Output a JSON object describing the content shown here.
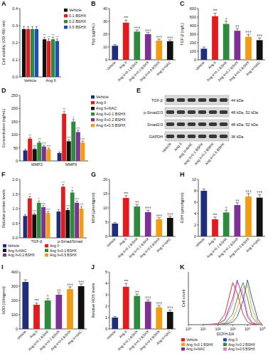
{
  "chart_data": [
    {
      "label": "A",
      "type": "bar",
      "y_label": "Cell viability (OD 450 nm)",
      "categories": [
        "Vehicle",
        "Ang II"
      ],
      "legend": "right",
      "ylim": [
        0,
        0.4
      ],
      "yticks": [
        {
          "value": 0,
          "label": "0.0"
        },
        {
          "value": 0.1,
          "label": "0.1"
        },
        {
          "value": 0.2,
          "label": "0.2"
        },
        {
          "value": 0.3,
          "label": "0.3"
        },
        {
          "value": 0.4,
          "label": "0.4"
        }
      ],
      "series": [
        {
          "name": "Vehicle",
          "color": "#111111",
          "values": [
            0.28,
            0.22
          ],
          "errors": [
            0.015,
            0.012
          ],
          "sig": [
            null,
            "***"
          ]
        },
        {
          "name": "0.1 BSHX",
          "color": "#e41a1c",
          "values": [
            0.28,
            0.21
          ],
          "errors": [
            0.014,
            0.012
          ],
          "sig": [
            null,
            "***"
          ]
        },
        {
          "name": "0.2 BSHX",
          "color": "#2e8b3e",
          "values": [
            0.28,
            0.22
          ],
          "errors": [
            0.015,
            0.013
          ],
          "sig": [
            null,
            "***"
          ]
        },
        {
          "name": "0.5 BSHX",
          "color": "#1f4fb4",
          "values": [
            0.28,
            0.21
          ],
          "errors": [
            0.014,
            0.012
          ],
          "sig": [
            null,
            "***"
          ]
        }
      ]
    },
    {
      "label": "B",
      "type": "bar",
      "y_label": "Hyp (μg/mL)",
      "categories": [
        "Vehicle",
        "Ang II",
        "Ang II+0.1 BSHX",
        "Ang II+0.2 BSHX",
        "Ang II+0.5 BSHX",
        "Ang II+NAC"
      ],
      "colors": [
        "#1f2d7a",
        "#e41a1c",
        "#2e8b3e",
        "#7b3294",
        "#f39c12",
        "#111111"
      ],
      "ylim": [
        0,
        40
      ],
      "yticks": [
        0,
        10,
        20,
        30,
        40
      ],
      "series": [
        {
          "values": [
            11,
            29,
            22,
            20,
            15,
            14.5
          ],
          "errors": [
            1,
            2,
            1.2,
            1.2,
            1,
            1
          ],
          "sig": [
            null,
            "***",
            "†††",
            "†††",
            "†††",
            "†††"
          ]
        }
      ]
    },
    {
      "label": "C",
      "type": "bar",
      "y_label": "TGF-β (ng/L)",
      "categories": [
        "Vehicle",
        "Ang II",
        "Ang II+0.1 BSHX",
        "Ang II+0.2 BSHX",
        "Ang II+0.5 BSHX",
        "Ang II+NAC"
      ],
      "colors": [
        "#1f2d7a",
        "#e41a1c",
        "#2e8b3e",
        "#7b3294",
        "#f39c12",
        "#111111"
      ],
      "ylim": [
        0,
        600
      ],
      "yticks": [
        0,
        100,
        200,
        300,
        400,
        500,
        600
      ],
      "series": [
        {
          "values": [
            130,
            510,
            420,
            340,
            270,
            230
          ],
          "errors": [
            20,
            35,
            30,
            25,
            25,
            25
          ],
          "sig": [
            null,
            "***",
            "†",
            "††",
            "†††",
            "†††"
          ]
        }
      ]
    },
    {
      "label": "D",
      "type": "bar",
      "y_label": "Concentration (ng/mL)",
      "categories": [
        "MMP2",
        "MMP9"
      ],
      "legend": "right",
      "ylim": [
        0,
        250
      ],
      "yticks": [
        0,
        50,
        100,
        150,
        200,
        250
      ],
      "series": [
        {
          "name": "Vehicle",
          "color": "#1f2d7a",
          "values": [
            40,
            30
          ],
          "errors": [
            4,
            4
          ],
          "sig": [
            null,
            null
          ]
        },
        {
          "name": "Ang II",
          "color": "#e41a1c",
          "values": [
            85,
            180
          ],
          "errors": [
            5,
            10
          ],
          "sig": [
            "***",
            "***"
          ]
        },
        {
          "name": "Ang II+NAC",
          "color": "#111111",
          "values": [
            45,
            75
          ],
          "errors": [
            4,
            6
          ],
          "sig": [
            "†††",
            "†††"
          ]
        },
        {
          "name": "Ang II+0.1 BSHX",
          "color": "#2e8b3e",
          "values": [
            70,
            150
          ],
          "errors": [
            5,
            8
          ],
          "sig": [
            "††",
            "†"
          ]
        },
        {
          "name": "Ang II+0.2 BSHX",
          "color": "#7b3294",
          "values": [
            55,
            110
          ],
          "errors": [
            4,
            7
          ],
          "sig": [
            "†††",
            "†††"
          ]
        },
        {
          "name": "Ang II+0.5 BSHX",
          "color": "#f39c12",
          "values": [
            45,
            70
          ],
          "errors": [
            4,
            6
          ],
          "sig": [
            "†††",
            "†††"
          ]
        }
      ]
    },
    {
      "label": "E",
      "type": "blot",
      "rows": [
        {
          "name": "TGF-β",
          "size": "44 kDa"
        },
        {
          "name": "p-Smad2/3",
          "size": "48 kDa, 52 kDa"
        },
        {
          "name": "Smad2/3",
          "size": "48 kDa, 52 kDa"
        },
        {
          "name": "GAPDH",
          "size": "36 kDa"
        }
      ],
      "lanes": [
        "Vehicle",
        "Ang II",
        "Ang II+NAC",
        "Ang II+0.1 BSHX",
        "Ang II+0.2 BSHX",
        "Ang II+0.5 BSHX"
      ]
    },
    {
      "label": "F",
      "type": "bar",
      "y_label": "Relative protein levels",
      "categories": [
        "TGF-β",
        "p-Smad/Smad"
      ],
      "legend": "bottom",
      "ylim": [
        0,
        2
      ],
      "yticks": [
        {
          "value": 0,
          "label": "0.0"
        },
        {
          "value": 0.5,
          "label": "0.5"
        },
        {
          "value": 1,
          "label": "1.0"
        },
        {
          "value": 1.5,
          "label": "1.5"
        },
        {
          "value": 2,
          "label": "2.0"
        }
      ],
      "series": [
        {
          "name": "Vehicle",
          "color": "#1f2d7a",
          "values": [
            0.75,
            0.9
          ],
          "errors": [
            0.05,
            0.06
          ],
          "sig": [
            null,
            null
          ]
        },
        {
          "name": "Ang II",
          "color": "#e41a1c",
          "values": [
            1.35,
            1.75
          ],
          "errors": [
            0.07,
            0.08
          ],
          "sig": [
            "***",
            "***"
          ]
        },
        {
          "name": "Ang II+NAC",
          "color": "#111111",
          "values": [
            0.8,
            0.95
          ],
          "errors": [
            0.05,
            0.06
          ],
          "sig": [
            "†††",
            "†††"
          ]
        },
        {
          "name": "Ang II+0.1 BSHX",
          "color": "#2e8b3e",
          "values": [
            1.2,
            1.55
          ],
          "errors": [
            0.06,
            0.07
          ],
          "sig": [
            "†",
            "†"
          ]
        },
        {
          "name": "Ang II+0.2 BSHX",
          "color": "#7b3294",
          "values": [
            1.05,
            1.2
          ],
          "errors": [
            0.05,
            0.06
          ],
          "sig": [
            "†††",
            "†††"
          ]
        },
        {
          "name": "Ang II+0.5 BSHX",
          "color": "#f39c12",
          "values": [
            0.85,
            1.0
          ],
          "errors": [
            0.05,
            0.06
          ],
          "sig": [
            "†††",
            "†††"
          ]
        }
      ]
    },
    {
      "label": "G",
      "type": "bar",
      "y_label": "MDA (μmol/gprot)",
      "categories": [
        "Vehicle",
        "Ang II",
        "Ang II+0.1 BSHX",
        "Ang II+0.2 BSHX",
        "Ang II+0.5 BSHX",
        "Ang II+NAC"
      ],
      "colors": [
        "#1f2d7a",
        "#e41a1c",
        "#2e8b3e",
        "#7b3294",
        "#f39c12",
        "#111111"
      ],
      "ylim": [
        0,
        20
      ],
      "yticks": [
        0,
        5,
        10,
        15,
        20
      ],
      "series": [
        {
          "values": [
            4.5,
            13.5,
            10.5,
            8.5,
            6,
            6.5
          ],
          "errors": [
            0.4,
            0.8,
            0.6,
            0.6,
            0.5,
            0.5
          ],
          "sig": [
            null,
            "***",
            "††",
            "†††",
            "†††",
            "†††"
          ]
        }
      ]
    },
    {
      "label": "H",
      "type": "bar",
      "y_label": "GSH (μmol/gprot)",
      "categories": [
        "Vehicle",
        "Ang II",
        "Ang II+0.1 BSHX",
        "Ang II+0.2 BSHX",
        "Ang II+0.5 BSHX",
        "Ang II+NAC"
      ],
      "colors": [
        "#1f2d7a",
        "#e41a1c",
        "#2e8b3e",
        "#7b3294",
        "#f39c12",
        "#111111"
      ],
      "ylim": [
        0,
        10
      ],
      "yticks": [
        0,
        2,
        4,
        6,
        8,
        10
      ],
      "series": [
        {
          "values": [
            8,
            3,
            4.2,
            5.5,
            7,
            6.8
          ],
          "errors": [
            0.3,
            0.4,
            0.4,
            0.4,
            0.5,
            0.5
          ],
          "sig": [
            null,
            "***",
            "†",
            "††",
            "†††",
            "†††"
          ]
        }
      ]
    },
    {
      "label": "I",
      "type": "bar",
      "y_label": "SOD (U/mgprot)",
      "categories": [
        "Vehicle",
        "Ang II",
        "Ang II+0.1 BSHX",
        "Ang II+0.2 BSHX",
        "Ang II+0.5 BSHX",
        "Ang II+NAC"
      ],
      "colors": [
        "#1f2d7a",
        "#e41a1c",
        "#2e8b3e",
        "#7b3294",
        "#f39c12",
        "#111111"
      ],
      "ylim": [
        0,
        400
      ],
      "yticks": [
        0,
        100,
        200,
        300,
        400
      ],
      "series": [
        {
          "values": [
            330,
            170,
            200,
            240,
            280,
            300
          ],
          "errors": [
            15,
            12,
            12,
            15,
            15,
            15
          ],
          "sig": [
            null,
            "***",
            "†",
            "††",
            "†††",
            "†††"
          ]
        }
      ]
    },
    {
      "label": "J",
      "type": "bar",
      "y_label": "Relative ROS levels",
      "categories": [
        "Vehicle",
        "Ang II",
        "Ang II+0.1 BSHX",
        "Ang II+0.2 BSHX",
        "Ang II+0.5 BSHX",
        "Ang II+NAC"
      ],
      "colors": [
        "#1f2d7a",
        "#e41a1c",
        "#2e8b3e",
        "#7b3294",
        "#f39c12",
        "#111111"
      ],
      "ylim": [
        0,
        5
      ],
      "yticks": [
        0,
        1,
        2,
        3,
        4,
        5
      ],
      "series": [
        {
          "values": [
            1,
            3.7,
            2.9,
            2.4,
            1.9,
            1.5
          ],
          "errors": [
            0.1,
            0.3,
            0.15,
            0.15,
            0.15,
            0.15
          ],
          "sig": [
            null,
            "***",
            "††",
            "†††",
            "†††",
            "†††"
          ]
        }
      ]
    },
    {
      "label": "K",
      "type": "line",
      "x_label": "DCFH-DA",
      "y_label": "Cell count",
      "log": "x",
      "tick_labels": "x",
      "legend": "bottom",
      "xlim": [
        1,
        100000
      ],
      "xticks": [
        {
          "value": 1,
          "label": "10⁰"
        },
        {
          "value": 10,
          "label": "10¹"
        },
        {
          "value": 100,
          "label": "10²"
        },
        {
          "value": 1000,
          "label": "10³"
        },
        {
          "value": 10000,
          "label": "10⁴"
        },
        {
          "value": 100000,
          "label": "10⁵"
        }
      ],
      "ylim": [
        0,
        100
      ],
      "x": [
        10,
        100,
        300,
        1000,
        2000,
        5000,
        10000,
        20000,
        50000,
        100000
      ],
      "series": [
        {
          "name": "Vehicle",
          "color": "#e41a1c",
          "values": [
            0,
            2,
            20,
            80,
            60,
            20,
            5,
            1,
            0,
            0
          ]
        },
        {
          "name": "Ang II",
          "color": "#1f4fb4",
          "values": [
            0,
            0,
            1,
            5,
            15,
            45,
            85,
            50,
            10,
            0
          ]
        },
        {
          "name": "Ang II+0.1 BSHX",
          "color": "#f39c12",
          "values": [
            0,
            0,
            2,
            10,
            30,
            70,
            75,
            30,
            5,
            0
          ]
        },
        {
          "name": "Ang II+0.2 BSHX",
          "color": "#2e8b3e",
          "values": [
            0,
            0,
            3,
            20,
            50,
            80,
            50,
            15,
            2,
            0
          ]
        },
        {
          "name": "Ang II+NAC",
          "color": "#7b3294",
          "values": [
            0,
            1,
            10,
            50,
            85,
            50,
            15,
            3,
            0,
            0
          ]
        },
        {
          "name": "Ang II+0.5 BSHX",
          "color": "#e377c2",
          "values": [
            0,
            1,
            8,
            40,
            80,
            60,
            20,
            5,
            1,
            0
          ]
        }
      ]
    }
  ]
}
